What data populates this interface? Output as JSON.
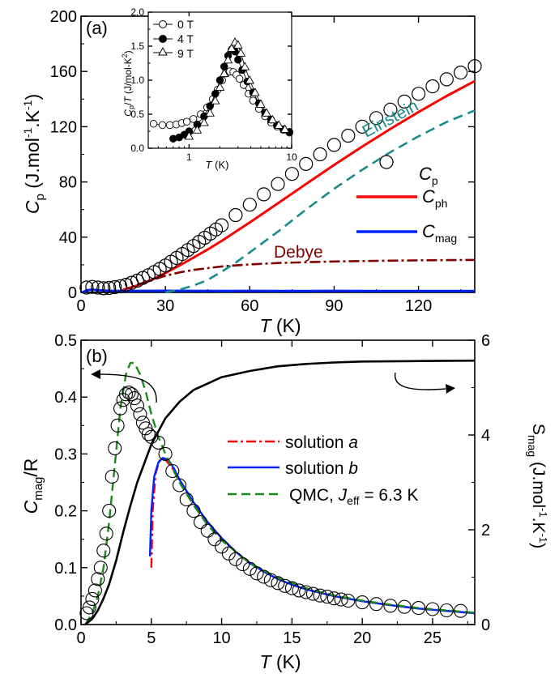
{
  "chart_data": [
    {
      "panel_label": "(a)",
      "type": "scatter",
      "xlabel": "T (K)",
      "ylabel": "Cp (J.mol-1.K-1)",
      "xlim": [
        0,
        140
      ],
      "ylim": [
        0,
        200
      ],
      "xticks": [
        0,
        30,
        60,
        90,
        120
      ],
      "yticks": [
        0,
        40,
        80,
        120,
        160,
        200
      ],
      "legend_position": "right-middle",
      "series": [
        {
          "name": "Cp",
          "kind": "markers",
          "color": "#000000",
          "x": [
            2,
            4,
            6,
            8,
            10,
            12,
            14,
            16,
            18,
            20,
            22,
            24,
            26,
            28,
            30,
            32,
            34,
            36,
            38,
            40,
            42,
            44,
            46,
            48,
            50,
            55,
            60,
            65,
            70,
            75,
            80,
            85,
            90,
            95,
            100,
            105,
            110,
            115,
            120,
            125,
            130,
            135,
            140
          ],
          "y": [
            3.5,
            4,
            3.5,
            3,
            3.2,
            3.8,
            4.5,
            5.5,
            7,
            8.5,
            10.5,
            12.5,
            14.7,
            17,
            19.5,
            22.2,
            25,
            27.8,
            30.7,
            33.6,
            36.6,
            39.6,
            42.6,
            45.6,
            48.6,
            56,
            63.5,
            71,
            78.5,
            85.8,
            93,
            100,
            106.8,
            113.5,
            120,
            126.2,
            132.3,
            138.2,
            143.8,
            149.2,
            154.3,
            159.2,
            163.8
          ]
        },
        {
          "name": "Cph",
          "kind": "line",
          "color": "#ff0000",
          "x": [
            15,
            20,
            25,
            30,
            35,
            40,
            45,
            50,
            60,
            70,
            80,
            90,
            100,
            110,
            120,
            130,
            140
          ],
          "y": [
            2,
            5,
            9,
            14,
            19.5,
            25.2,
            31,
            37.3,
            50.7,
            64.5,
            78.5,
            92.3,
            105.6,
            118.4,
            130.6,
            142.2,
            153
          ]
        },
        {
          "name": "Cmag",
          "kind": "line",
          "color": "#0022ff",
          "x": [
            0.5,
            2,
            4,
            6,
            10,
            20,
            30,
            40,
            50,
            60,
            70,
            80,
            90,
            100,
            110,
            120,
            130,
            140
          ],
          "y": [
            0,
            1.5,
            2,
            1.6,
            1.2,
            1.1,
            1.2,
            1.1,
            1.0,
            1.1,
            1.0,
            1.0,
            1.1,
            1.0,
            1.0,
            1.0,
            1.0,
            1.0
          ]
        },
        {
          "name": "Debye",
          "kind": "dashdot",
          "color": "#800000",
          "x": [
            20,
            25,
            30,
            35,
            40,
            50,
            60,
            70,
            80,
            90,
            100,
            110,
            120,
            130,
            140
          ],
          "y": [
            5.5,
            9,
            12,
            14.5,
            16.3,
            18.8,
            20.3,
            21.3,
            21.9,
            22.4,
            22.7,
            23,
            23.2,
            23.4,
            23.5
          ]
        },
        {
          "name": "Einstein",
          "kind": "dashed",
          "color": "#1a8a8a",
          "x": [
            30,
            35,
            40,
            45,
            50,
            55,
            60,
            70,
            80,
            90,
            100,
            110,
            120,
            130,
            140
          ],
          "y": [
            0,
            2,
            5,
            9,
            15,
            21.5,
            29,
            44,
            60,
            75,
            88.8,
            101.6,
            113,
            123.4,
            131.8
          ]
        }
      ],
      "inset": {
        "type": "scatter",
        "xlabel": "T (K)",
        "ylabel": "Cp/T (J/mol-K2)",
        "xscale": "log",
        "xlim": [
          0.4,
          10
        ],
        "ylim": [
          0,
          2.0
        ],
        "yticks": [
          0.0,
          0.5,
          1.0,
          1.5,
          2.0
        ],
        "xticks": [
          1,
          10
        ],
        "legend_position": "top-left",
        "series": [
          {
            "name": "0 T",
            "marker": "open-circle",
            "x": [
              0.45,
              0.55,
              0.65,
              0.75,
              0.85,
              0.95,
              1.1,
              1.3,
              1.5,
              1.7,
              1.9,
              2.1,
              2.3,
              2.5,
              2.7,
              2.9,
              3.1,
              3.4,
              3.8,
              4.2,
              4.8,
              5.5,
              6.3,
              7.2,
              8.3,
              9.5
            ],
            "y": [
              0.36,
              0.34,
              0.34,
              0.35,
              0.37,
              0.39,
              0.43,
              0.5,
              0.6,
              0.72,
              0.86,
              1.0,
              1.1,
              1.13,
              1.12,
              1.08,
              1.02,
              0.93,
              0.8,
              0.7,
              0.58,
              0.47,
              0.38,
              0.32,
              0.27,
              0.23
            ]
          },
          {
            "name": "4 T",
            "marker": "half-filled-circle",
            "x": [
              0.7,
              0.8,
              0.9,
              1.0,
              1.2,
              1.4,
              1.6,
              1.8,
              2.0,
              2.2,
              2.4,
              2.6,
              2.8,
              3.0,
              3.3,
              3.7,
              4.2,
              4.8,
              5.5,
              6.3,
              7.2,
              8.3,
              9.5
            ],
            "y": [
              0.14,
              0.16,
              0.2,
              0.25,
              0.35,
              0.47,
              0.62,
              0.8,
              1.0,
              1.2,
              1.36,
              1.45,
              1.42,
              1.3,
              1.15,
              0.98,
              0.82,
              0.66,
              0.52,
              0.42,
              0.34,
              0.28,
              0.24
            ]
          },
          {
            "name": "9 T",
            "marker": "open-triangle",
            "x": [
              1.0,
              1.2,
              1.4,
              1.6,
              1.8,
              2.0,
              2.2,
              2.4,
              2.6,
              2.8,
              3.0,
              3.2,
              3.5,
              3.9,
              4.4,
              5.0,
              5.7,
              6.5,
              7.5,
              8.6
            ],
            "y": [
              0.18,
              0.27,
              0.38,
              0.52,
              0.7,
              0.9,
              1.1,
              1.3,
              1.47,
              1.56,
              1.52,
              1.4,
              1.2,
              1.0,
              0.82,
              0.65,
              0.52,
              0.42,
              0.34,
              0.28
            ]
          }
        ]
      }
    },
    {
      "panel_label": "(b)",
      "type": "scatter",
      "xlabel": "T (K)",
      "ylabel": "Cmag/R",
      "y2label": "Smag (J.mol-1.K-1)",
      "xlim": [
        0,
        28
      ],
      "ylim": [
        0,
        0.5
      ],
      "y2lim": [
        0,
        6
      ],
      "xticks": [
        0,
        5,
        10,
        15,
        20,
        25
      ],
      "yticks": [
        0.0,
        0.1,
        0.2,
        0.3,
        0.4,
        0.5
      ],
      "y2ticks": [
        0,
        2,
        4,
        6
      ],
      "legend_position": "right-middle",
      "series": [
        {
          "name": "",
          "kind": "markers",
          "color": "#000000",
          "x": [
            0.4,
            0.6,
            0.8,
            1.0,
            1.2,
            1.4,
            1.6,
            1.8,
            2.0,
            2.2,
            2.4,
            2.6,
            2.8,
            3.0,
            3.2,
            3.4,
            3.6,
            3.8,
            4.0,
            4.2,
            4.4,
            4.6,
            4.8,
            5.0,
            5.5,
            6.0,
            6.5,
            7.0,
            7.5,
            8.0,
            8.5,
            9.0,
            9.5,
            10.0,
            10.5,
            11.0,
            11.5,
            12.0,
            12.5,
            13.0,
            13.5,
            14.0,
            14.5,
            15.0,
            15.5,
            16.0,
            16.5,
            17.0,
            17.5,
            18.0,
            18.5,
            19.0,
            20.0,
            21.0,
            22.0,
            23.0,
            24.0,
            25.0,
            26.0,
            27.0
          ],
          "y": [
            0.02,
            0.03,
            0.045,
            0.06,
            0.08,
            0.1,
            0.13,
            0.16,
            0.2,
            0.26,
            0.31,
            0.35,
            0.38,
            0.395,
            0.405,
            0.408,
            0.405,
            0.398,
            0.385,
            0.37,
            0.355,
            0.345,
            0.335,
            0.33,
            0.32,
            0.3,
            0.27,
            0.245,
            0.22,
            0.2,
            0.18,
            0.165,
            0.15,
            0.137,
            0.125,
            0.115,
            0.106,
            0.098,
            0.09,
            0.084,
            0.078,
            0.073,
            0.068,
            0.064,
            0.06,
            0.057,
            0.054,
            0.051,
            0.049,
            0.046,
            0.044,
            0.042,
            0.039,
            0.036,
            0.033,
            0.031,
            0.029,
            0.027,
            0.025,
            0.024
          ]
        },
        {
          "name": "solution a",
          "kind": "dashdot",
          "color": "#ff0000",
          "x": [
            5.0,
            5.1,
            5.3,
            5.6,
            6.0,
            6.5,
            7.0,
            8,
            9,
            10,
            11,
            12,
            13,
            14,
            15,
            16,
            18,
            20,
            22,
            24,
            26,
            28
          ],
          "y": [
            0.1,
            0.2,
            0.265,
            0.29,
            0.29,
            0.275,
            0.255,
            0.215,
            0.18,
            0.152,
            0.128,
            0.108,
            0.093,
            0.08,
            0.07,
            0.062,
            0.05,
            0.041,
            0.034,
            0.028,
            0.024,
            0.02
          ]
        },
        {
          "name": "solution b",
          "kind": "line",
          "color": "#0022ff",
          "x": [
            4.9,
            5.0,
            5.2,
            5.5,
            5.8,
            6.2,
            6.6,
            7.0,
            8,
            9,
            10,
            11,
            12,
            13,
            14,
            15,
            16,
            18,
            20,
            22,
            24,
            26,
            28
          ],
          "y": [
            0.12,
            0.2,
            0.26,
            0.285,
            0.293,
            0.29,
            0.275,
            0.255,
            0.215,
            0.18,
            0.152,
            0.128,
            0.108,
            0.093,
            0.08,
            0.07,
            0.062,
            0.05,
            0.041,
            0.034,
            0.028,
            0.024,
            0.02
          ]
        },
        {
          "name": "QMC, Jeff = 6.3 K",
          "kind": "dashed",
          "color": "#1a8a1a",
          "x": [
            0.3,
            0.8,
            1.2,
            1.6,
            2.0,
            2.4,
            2.8,
            3.2,
            3.5,
            3.8,
            4.2,
            4.6,
            5.0,
            5.5,
            6.0,
            7,
            8,
            9,
            10,
            12,
            14,
            16,
            18,
            20,
            22,
            24,
            26,
            28
          ],
          "y": [
            0.0,
            0.02,
            0.05,
            0.1,
            0.18,
            0.28,
            0.38,
            0.44,
            0.46,
            0.46,
            0.44,
            0.41,
            0.37,
            0.33,
            0.3,
            0.25,
            0.21,
            0.175,
            0.148,
            0.108,
            0.082,
            0.064,
            0.051,
            0.042,
            0.035,
            0.029,
            0.025,
            0.021
          ]
        },
        {
          "name": "",
          "kind": "line",
          "axis": "right",
          "color": "#000000",
          "x": [
            0.3,
            0.8,
            1.2,
            1.6,
            2.0,
            2.5,
            3.0,
            3.5,
            4.0,
            5.0,
            6.0,
            7.0,
            8.0,
            10.0,
            12.0,
            14.0,
            16.0,
            18.0,
            20.0,
            24.0,
            28.0
          ],
          "y": [
            0.0,
            0.12,
            0.3,
            0.55,
            0.85,
            1.35,
            1.95,
            2.5,
            3.0,
            3.8,
            4.35,
            4.7,
            4.95,
            5.22,
            5.35,
            5.45,
            5.5,
            5.53,
            5.55,
            5.56,
            5.57
          ]
        }
      ]
    }
  ]
}
